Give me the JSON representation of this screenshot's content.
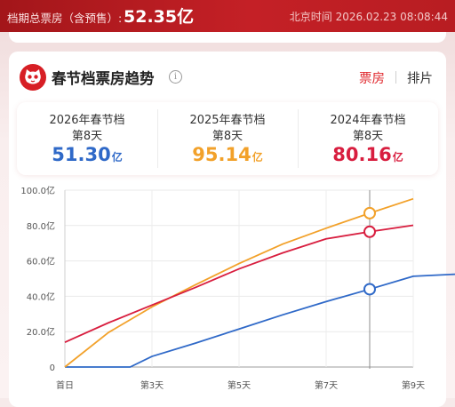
{
  "banner": {
    "total_label": "档期总票房（含预售）:",
    "total_value": "52.35亿",
    "time_text": "北京时间 2026.02.23 08:08:44"
  },
  "card": {
    "title": "春节档票房趋势",
    "info_icon": "info-icon",
    "logo_icon": "cat-logo-icon",
    "tabs": [
      {
        "label": "票房",
        "active": true
      },
      {
        "label": "排片",
        "active": false
      }
    ]
  },
  "stats": [
    {
      "year": "2026年春节档",
      "day": "第8天",
      "value": "51.30",
      "unit": "亿",
      "color": "#2f69c8"
    },
    {
      "year": "2025年春节档",
      "day": "第8天",
      "value": "95.14",
      "unit": "亿",
      "color": "#f2a12a"
    },
    {
      "year": "2024年春节档",
      "day": "第8天",
      "value": "80.16",
      "unit": "亿",
      "color": "#d81e3f"
    }
  ],
  "colors": {
    "accent_red": "#e02a2f",
    "banner_red": "#b81d22"
  },
  "chart_data": {
    "type": "line",
    "x": [
      1,
      2,
      3,
      4,
      5,
      6,
      7,
      8,
      9
    ],
    "tick_labels": [
      "首日",
      "第3天",
      "第5天",
      "第7天",
      "第9天"
    ],
    "tick_positions": [
      1,
      3,
      5,
      7,
      9
    ],
    "ylim": [
      0,
      100
    ],
    "ytick_labels": [
      "0",
      "20.0亿",
      "40.0亿",
      "60.0亿",
      "80.0亿",
      "100.0亿"
    ],
    "ytick_values": [
      0,
      20,
      40,
      60,
      80,
      100
    ],
    "highlight_x": 8,
    "grid": true,
    "series": [
      {
        "name": "2026年春节档",
        "color": "#2f69c8",
        "x": [
          0,
          1.5,
          2,
          3,
          4,
          5,
          6,
          7,
          8,
          9
        ],
        "y": [
          0,
          0,
          6,
          13.5,
          21.5,
          29.5,
          37,
          44,
          51.3,
          52.5
        ]
      },
      {
        "name": "2025年春节档",
        "color": "#f2a12a",
        "x": [
          0,
          1,
          2,
          3,
          4,
          5,
          6,
          7,
          8
        ],
        "y": [
          0,
          19.5,
          34,
          46.5,
          58.5,
          69.5,
          78.5,
          87,
          95.14
        ]
      },
      {
        "name": "2024年春节档",
        "color": "#d81e3f",
        "x": [
          0,
          1,
          2,
          3,
          4,
          5,
          6,
          7,
          8
        ],
        "y": [
          14,
          25,
          35,
          45,
          55.5,
          64.5,
          72.5,
          76.5,
          80.16
        ]
      }
    ]
  }
}
